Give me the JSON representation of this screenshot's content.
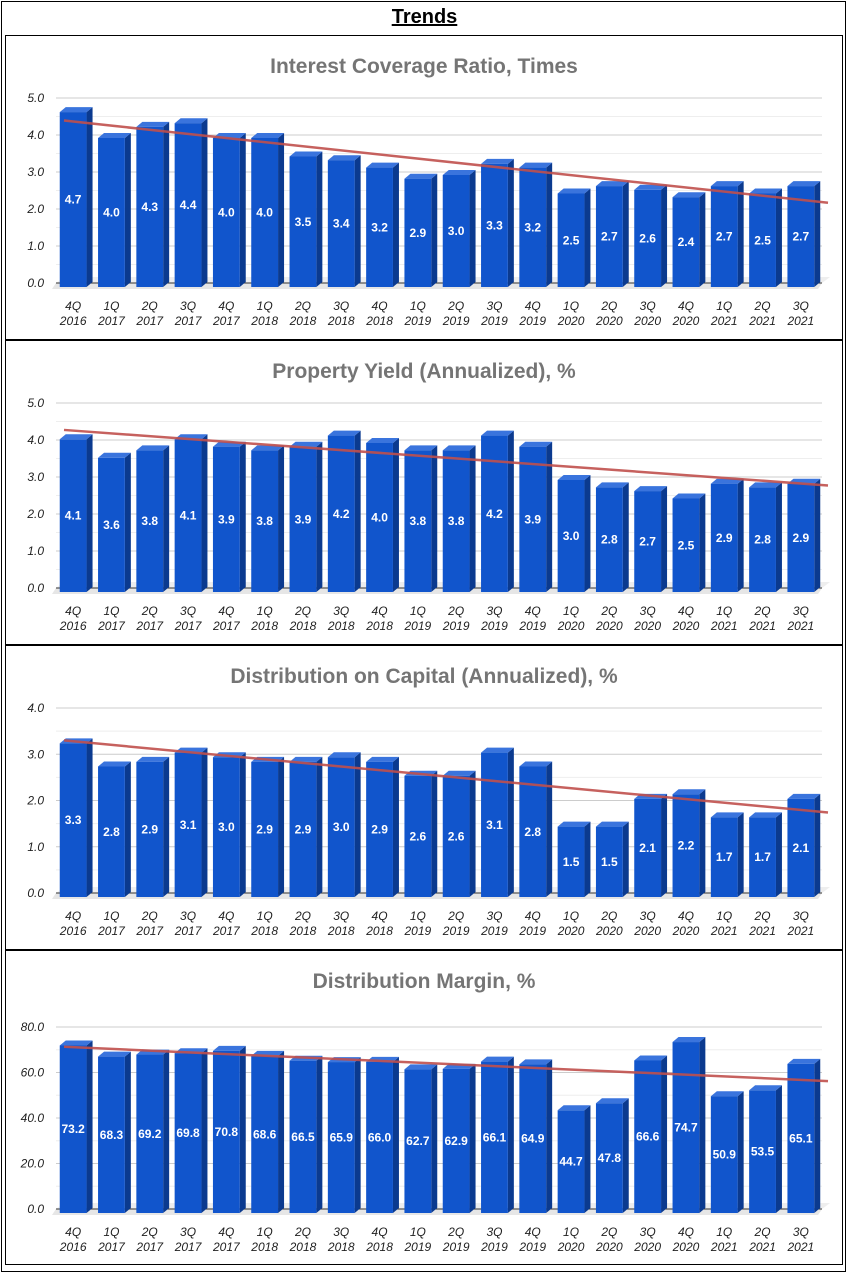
{
  "page_title": "Trends",
  "chart_data": [
    {
      "type": "bar",
      "title": "Interest Coverage Ratio, Times",
      "ylim": [
        0,
        5
      ],
      "ystep": 1,
      "ydecimals": 1,
      "categories": [
        "4Q 2016",
        "1Q 2017",
        "2Q 2017",
        "3Q 2017",
        "4Q 2017",
        "1Q 2018",
        "2Q 2018",
        "3Q 2018",
        "4Q 2018",
        "1Q 2019",
        "2Q 2019",
        "3Q 2019",
        "4Q 2019",
        "1Q 2020",
        "2Q 2020",
        "3Q 2020",
        "4Q 2020",
        "1Q 2021",
        "2Q 2021",
        "3Q 2021"
      ],
      "values": [
        4.7,
        4.0,
        4.3,
        4.4,
        4.0,
        4.0,
        3.5,
        3.4,
        3.2,
        2.9,
        3.0,
        3.3,
        3.2,
        2.5,
        2.7,
        2.6,
        2.4,
        2.7,
        2.5,
        2.7
      ],
      "trendline": "linear",
      "bar_color": "#1155cc",
      "trend_color": "#c0504d"
    },
    {
      "type": "bar",
      "title": "Property Yield (Annualized), %",
      "ylim": [
        0,
        5
      ],
      "ystep": 1,
      "ydecimals": 1,
      "categories": [
        "4Q 2016",
        "1Q 2017",
        "2Q 2017",
        "3Q 2017",
        "4Q 2017",
        "1Q 2018",
        "2Q 2018",
        "3Q 2018",
        "4Q 2018",
        "1Q 2019",
        "2Q 2019",
        "3Q 2019",
        "4Q 2019",
        "1Q 2020",
        "2Q 2020",
        "3Q 2020",
        "4Q 2020",
        "1Q 2021",
        "2Q 2021",
        "3Q 2021"
      ],
      "values": [
        4.1,
        3.6,
        3.8,
        4.1,
        3.9,
        3.8,
        3.9,
        4.2,
        4.0,
        3.8,
        3.8,
        4.2,
        3.9,
        3.0,
        2.8,
        2.7,
        2.5,
        2.9,
        2.8,
        2.9
      ],
      "trendline": "linear",
      "bar_color": "#1155cc",
      "trend_color": "#c0504d"
    },
    {
      "type": "bar",
      "title": "Distribution on Capital (Annualized), %",
      "ylim": [
        0,
        4
      ],
      "ystep": 1,
      "ydecimals": 1,
      "categories": [
        "4Q 2016",
        "1Q 2017",
        "2Q 2017",
        "3Q 2017",
        "4Q 2017",
        "1Q 2018",
        "2Q 2018",
        "3Q 2018",
        "4Q 2018",
        "1Q 2019",
        "2Q 2019",
        "3Q 2019",
        "4Q 2019",
        "1Q 2020",
        "2Q 2020",
        "3Q 2020",
        "4Q 2020",
        "1Q 2021",
        "2Q 2021",
        "3Q 2021"
      ],
      "values": [
        3.3,
        2.8,
        2.9,
        3.1,
        3.0,
        2.9,
        2.9,
        3.0,
        2.9,
        2.6,
        2.6,
        3.1,
        2.8,
        1.5,
        1.5,
        2.1,
        2.2,
        1.7,
        1.7,
        2.1
      ],
      "trendline": "linear",
      "bar_color": "#1155cc",
      "trend_color": "#c0504d"
    },
    {
      "type": "bar",
      "title": "Distribution Margin, %",
      "ylim": [
        0,
        80
      ],
      "ystep": 20,
      "ydecimals": 1,
      "categories": [
        "4Q 2016",
        "1Q 2017",
        "2Q 2017",
        "3Q 2017",
        "4Q 2017",
        "1Q 2018",
        "2Q 2018",
        "3Q 2018",
        "4Q 2018",
        "1Q 2019",
        "2Q 2019",
        "3Q 2019",
        "4Q 2019",
        "1Q 2020",
        "2Q 2020",
        "3Q 2020",
        "4Q 2020",
        "1Q 2021",
        "2Q 2021",
        "3Q 2021"
      ],
      "values": [
        73.2,
        68.3,
        69.2,
        69.8,
        70.8,
        68.6,
        66.5,
        65.9,
        66.0,
        62.7,
        62.9,
        66.1,
        64.9,
        44.7,
        47.8,
        66.6,
        74.7,
        50.9,
        53.5,
        65.1
      ],
      "trendline": "linear",
      "bar_color": "#1155cc",
      "trend_color": "#c0504d"
    }
  ]
}
